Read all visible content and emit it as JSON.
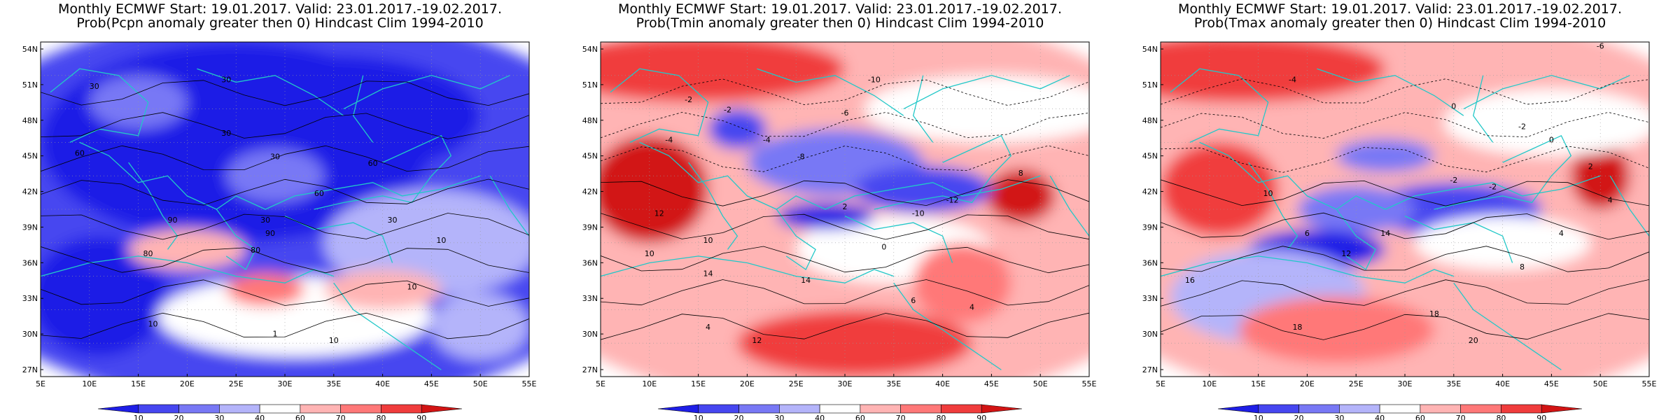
{
  "panels": [
    {
      "title_line1": "Monthly ECMWF Start: 19.01.2017. Valid: 23.01.2017.-19.02.2017.",
      "title_line2": "Prob(Pcpn anomaly greater then 0) Hindcast Clim 1994-2010",
      "contour_labels": [
        "30",
        "30",
        "30",
        "30",
        "60",
        "60",
        "60",
        "30",
        "30",
        "90",
        "80",
        "80",
        "90",
        "10",
        "10",
        "10",
        "10",
        "1"
      ]
    },
    {
      "title_line1": "Monthly ECMWF Start: 19.01.2017. Valid: 23.01.2017.-19.02.2017.",
      "title_line2": "Prob(Tmin anomaly greater then 0) Hindcast Clim 1994-2010",
      "contour_labels": [
        "-2",
        "-4",
        "-6",
        "-10",
        "-8",
        "-4",
        "-2",
        "2",
        "0",
        "12",
        "10",
        "14",
        "14",
        "6",
        "4",
        "-10",
        "-12",
        "8",
        "4",
        "12",
        "10"
      ]
    },
    {
      "title_line1": "Monthly ECMWF Start: 19.01.2017. Valid: 23.01.2017.-19.02.2017.",
      "title_line2": "Prob(Tmax anomaly greater then 0) Hindcast Clim 1994-2010",
      "contour_labels": [
        "-6",
        "-4",
        "0",
        "-2",
        "2",
        "4",
        "-2",
        "6",
        "10",
        "12",
        "14",
        "16",
        "18",
        "18",
        "20",
        "8",
        "4",
        "-2",
        "0"
      ]
    }
  ],
  "lat_labels": [
    "54N",
    "51N",
    "48N",
    "45N",
    "42N",
    "39N",
    "36N",
    "33N",
    "30N",
    "27N"
  ],
  "lon_labels": [
    "5E",
    "10E",
    "15E",
    "20E",
    "25E",
    "30E",
    "35E",
    "40E",
    "45E",
    "50E",
    "55E"
  ],
  "colorbar_labels": [
    "10",
    "20",
    "30",
    "40",
    "60",
    "70",
    "80",
    "90"
  ],
  "colorbar_colors": [
    "#1e1ee6",
    "#4646f0",
    "#7878f5",
    "#b4b4fa",
    "#ffffff",
    "#ffb4b4",
    "#ff7878",
    "#f03c3c",
    "#d21414"
  ],
  "colors": {
    "coast": "#22c8c8",
    "contour": "#000000",
    "grid": "#999999"
  }
}
